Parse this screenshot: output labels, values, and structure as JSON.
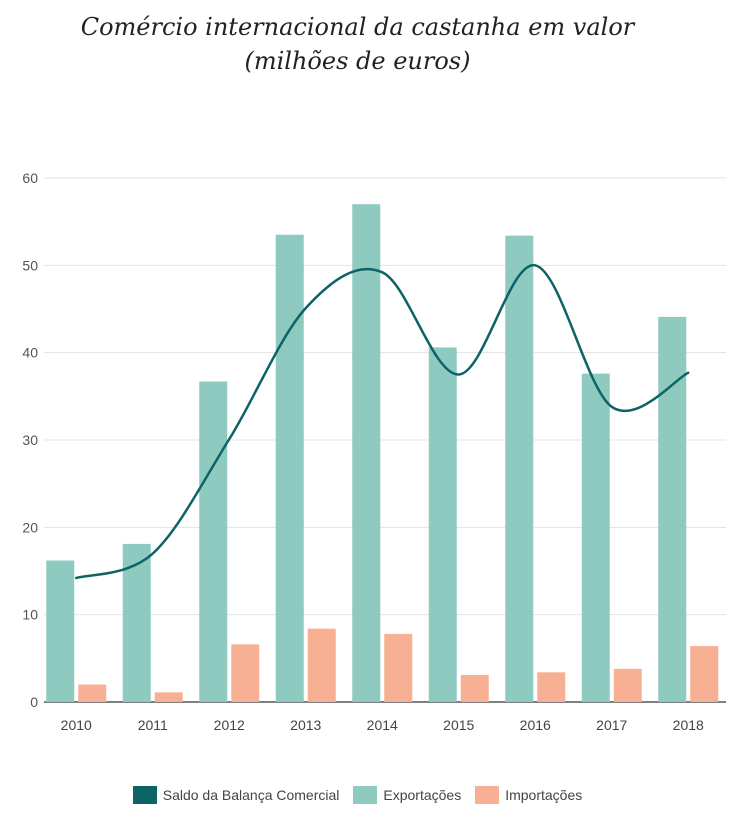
{
  "chart_data": {
    "type": "bar",
    "title_line1": "Comércio internacional da castanha em valor",
    "title_line2": "(milhões de euros)",
    "categories": [
      "2010",
      "2011",
      "2012",
      "2013",
      "2014",
      "2015",
      "2016",
      "2017",
      "2018"
    ],
    "ylim": [
      0,
      60
    ],
    "yticks": [
      "0",
      "10",
      "20",
      "30",
      "40",
      "50",
      "60"
    ],
    "grid": true,
    "legend_position": "bottom",
    "series": [
      {
        "name": "Exportações",
        "type": "bar",
        "color": "#8ecac0",
        "values": [
          16.2,
          18.1,
          36.7,
          53.5,
          57.0,
          40.6,
          53.4,
          37.6,
          44.1
        ]
      },
      {
        "name": "Importações",
        "type": "bar",
        "color": "#f8b094",
        "values": [
          2.0,
          1.1,
          6.6,
          8.4,
          7.8,
          3.1,
          3.4,
          3.8,
          6.4
        ]
      },
      {
        "name": "Saldo da Balança Comercial",
        "type": "line",
        "color": "#0d6466",
        "values": [
          14.2,
          17.0,
          30.1,
          45.1,
          49.2,
          37.5,
          50.0,
          33.8,
          37.7
        ]
      }
    ]
  },
  "legend": {
    "items": [
      {
        "label": "Saldo da Balança Comercial",
        "color": "#0d6466"
      },
      {
        "label": "Exportações",
        "color": "#8ecac0"
      },
      {
        "label": "Importações",
        "color": "#f8b094"
      }
    ]
  }
}
